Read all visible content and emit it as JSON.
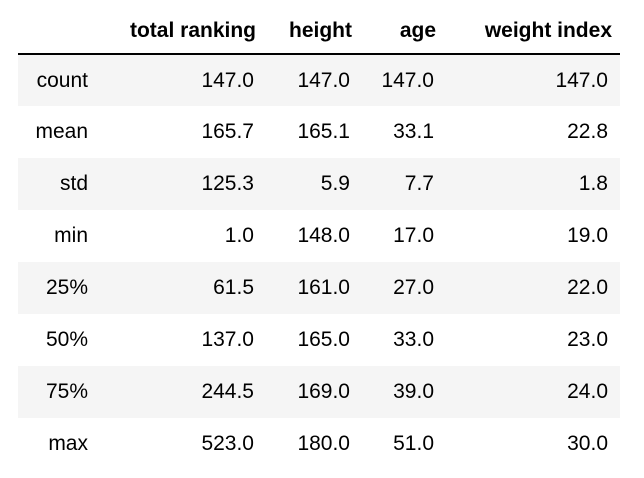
{
  "table": {
    "columns": [
      "total ranking",
      "height",
      "age",
      "weight index"
    ],
    "rows": [
      {
        "index": "count",
        "values": [
          "147.0",
          "147.0",
          "147.0",
          "147.0"
        ]
      },
      {
        "index": "mean",
        "values": [
          "165.7",
          "165.1",
          "33.1",
          "22.8"
        ]
      },
      {
        "index": "std",
        "values": [
          "125.3",
          "5.9",
          "7.7",
          "1.8"
        ]
      },
      {
        "index": "min",
        "values": [
          "1.0",
          "148.0",
          "17.0",
          "19.0"
        ]
      },
      {
        "index": "25%",
        "values": [
          "61.5",
          "161.0",
          "27.0",
          "22.0"
        ]
      },
      {
        "index": "50%",
        "values": [
          "137.0",
          "165.0",
          "33.0",
          "23.0"
        ]
      },
      {
        "index": "75%",
        "values": [
          "244.5",
          "169.0",
          "39.0",
          "24.0"
        ]
      },
      {
        "index": "max",
        "values": [
          "523.0",
          "180.0",
          "51.0",
          "30.0"
        ]
      }
    ]
  },
  "colors": {
    "stripe": "#f5f5f5",
    "rule": "#000000",
    "text": "#000000"
  }
}
